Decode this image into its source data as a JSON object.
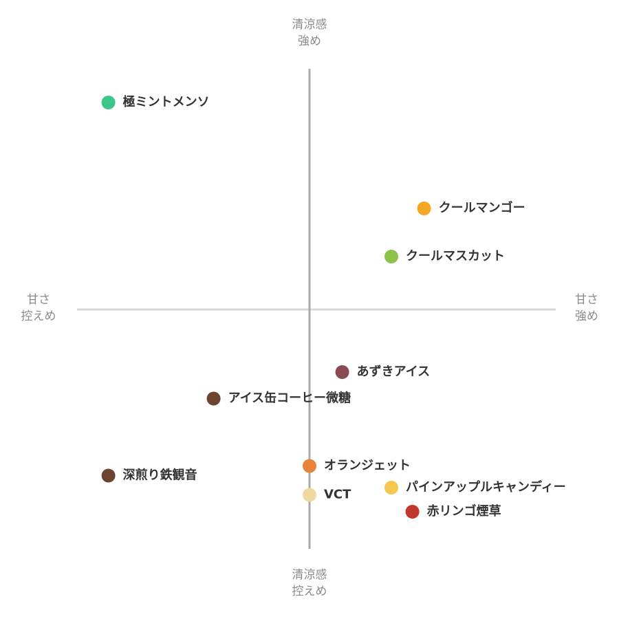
{
  "chart_data": {
    "type": "scatter",
    "axis_labels": {
      "top": [
        "清涼感",
        "強め"
      ],
      "bottom": [
        "清涼感",
        "控えめ"
      ],
      "left": [
        "甘さ",
        "控えめ"
      ],
      "right": [
        "甘さ",
        "強め"
      ]
    },
    "xlim": [
      -10,
      10
    ],
    "ylim": [
      -10,
      10
    ],
    "points": [
      {
        "name": "極ミントメンソ",
        "x": -8.6,
        "y": 8.6,
        "color": "#3cc68a"
      },
      {
        "name": "クールマンゴー",
        "x": 4.9,
        "y": 4.2,
        "color": "#f5a623"
      },
      {
        "name": "クールマスカット",
        "x": 3.5,
        "y": 2.2,
        "color": "#8bc34a"
      },
      {
        "name": "あずきアイス",
        "x": 1.4,
        "y": -2.6,
        "color": "#8b4a52"
      },
      {
        "name": "アイス缶コーヒー微糖",
        "x": -4.1,
        "y": -3.7,
        "color": "#6b4530"
      },
      {
        "name": "深煎り鉄観音",
        "x": -8.6,
        "y": -6.9,
        "color": "#6b4530"
      },
      {
        "name": "オランジェット",
        "x": 0,
        "y": -6.5,
        "color": "#e8833a"
      },
      {
        "name": "VCT",
        "x": 0,
        "y": -7.7,
        "color": "#f0d9a0"
      },
      {
        "name": "パインアップルキャンディー",
        "x": 3.5,
        "y": -7.4,
        "color": "#f2c94c"
      },
      {
        "name": "赤リンゴ煙草",
        "x": 4.4,
        "y": -8.4,
        "color": "#c0392b"
      }
    ]
  }
}
